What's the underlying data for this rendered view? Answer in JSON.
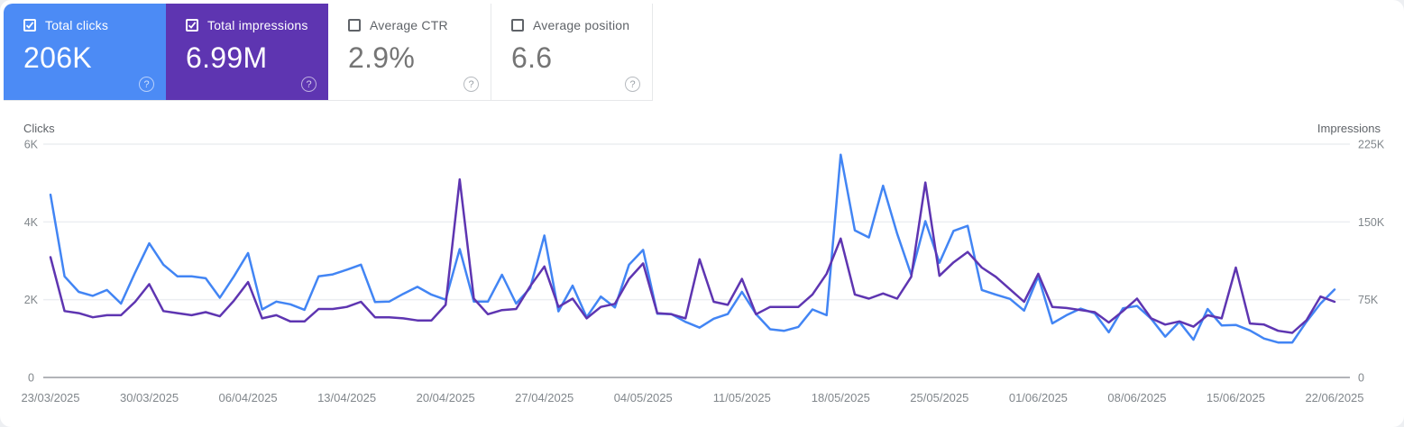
{
  "cards": [
    {
      "label": "Total clicks",
      "value": "206K",
      "checked": true,
      "accent": "#4c8bf5"
    },
    {
      "label": "Total impressions",
      "value": "6.99M",
      "checked": true,
      "accent": "#5e35b1"
    },
    {
      "label": "Average CTR",
      "value": "2.9%",
      "checked": false,
      "accent": "#ffffff"
    },
    {
      "label": "Average position",
      "value": "6.6",
      "checked": false,
      "accent": "#ffffff"
    }
  ],
  "chart_data": {
    "type": "line",
    "grid": true,
    "legend_position": "cards-above-chart",
    "left_axis": {
      "title": "Clicks",
      "ticks": [
        "6K",
        "4K",
        "2K"
      ],
      "zero_label": "0",
      "max": 6000
    },
    "right_axis": {
      "title": "Impressions",
      "ticks": [
        "225K",
        "150K",
        "75K"
      ],
      "zero_label": "0",
      "max": 225000
    },
    "x_tick_labels": [
      "23/03/2025",
      "30/03/2025",
      "06/04/2025",
      "13/04/2025",
      "20/04/2025",
      "27/04/2025",
      "04/05/2025",
      "11/05/2025",
      "18/05/2025",
      "25/05/2025",
      "01/06/2025",
      "08/06/2025",
      "15/06/2025",
      "22/06/2025"
    ],
    "x_start_date": "23/03/2025",
    "x_end_date": "22/06/2025",
    "points_per_series": 92,
    "series": [
      {
        "name": "Total clicks",
        "axis": "left",
        "color": "#4285f4",
        "values": [
          4700,
          2600,
          2200,
          2100,
          2250,
          1900,
          2700,
          3450,
          2900,
          2600,
          2600,
          2550,
          2050,
          2600,
          3200,
          1750,
          1950,
          1880,
          1740,
          2600,
          2650,
          2770,
          2900,
          1940,
          1950,
          2150,
          2330,
          2130,
          2000,
          3300,
          1950,
          1950,
          2640,
          1900,
          2300,
          3650,
          1700,
          2360,
          1550,
          2080,
          1800,
          2900,
          3280,
          1640,
          1630,
          1430,
          1280,
          1510,
          1630,
          2200,
          1630,
          1240,
          1200,
          1300,
          1750,
          1600,
          5730,
          3780,
          3600,
          4930,
          3700,
          2640,
          4020,
          2950,
          3770,
          3900,
          2250,
          2130,
          2020,
          1720,
          2600,
          1390,
          1600,
          1770,
          1650,
          1160,
          1780,
          1840,
          1510,
          1050,
          1430,
          970,
          1760,
          1340,
          1350,
          1210,
          1000,
          900,
          900,
          1430,
          1900,
          2260
        ]
      },
      {
        "name": "Total impressions",
        "axis": "right",
        "color": "#5e35b1",
        "values": [
          116000,
          64000,
          62000,
          58000,
          60000,
          60000,
          73000,
          90000,
          64000,
          62000,
          60000,
          63000,
          59000,
          74000,
          92000,
          57000,
          60000,
          54000,
          54000,
          66000,
          66000,
          68000,
          73000,
          58000,
          58000,
          57000,
          55000,
          55000,
          70000,
          191000,
          76000,
          61000,
          65000,
          66000,
          88000,
          107000,
          68000,
          76000,
          57000,
          68000,
          71000,
          95000,
          110000,
          62000,
          61000,
          57000,
          114000,
          73000,
          70000,
          95000,
          61000,
          68000,
          68000,
          68000,
          80000,
          100000,
          134000,
          80000,
          76000,
          81000,
          76000,
          97000,
          188000,
          98000,
          111000,
          121000,
          106000,
          97000,
          85000,
          73000,
          100000,
          68000,
          67000,
          65000,
          63000,
          53000,
          64000,
          76000,
          57000,
          51000,
          54000,
          49000,
          60000,
          57000,
          106000,
          52000,
          51000,
          45000,
          43000,
          55000,
          78000,
          73000
        ]
      }
    ]
  },
  "icons": {
    "help": "?",
    "checkbox_checked": "checked",
    "checkbox_unchecked": "unchecked"
  }
}
